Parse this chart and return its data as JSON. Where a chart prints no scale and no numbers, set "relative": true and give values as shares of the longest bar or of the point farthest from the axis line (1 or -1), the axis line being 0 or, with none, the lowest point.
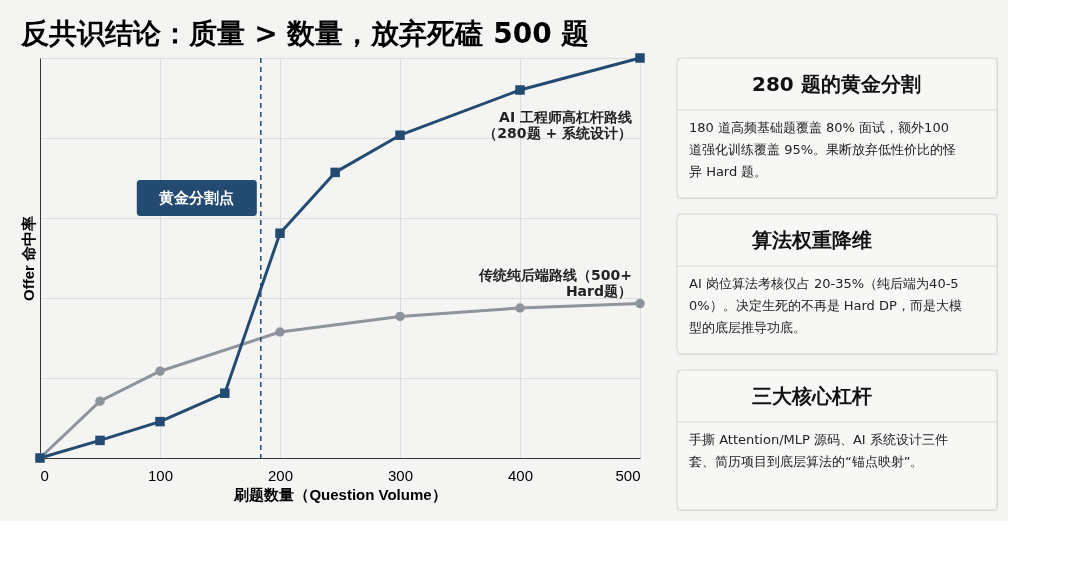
{
  "chart_data": [
    {
      "type": "line",
      "title": "反共识结论：质量 > 数量，放弃死磕 500 题",
      "xlabel": "刷题数量（Question Volume）",
      "ylabel": "Offer 命中率",
      "relative": true,
      "xlim": [
        0,
        500
      ],
      "xticks": [
        0,
        100,
        200,
        300,
        400,
        500
      ],
      "grid": true,
      "legend": false,
      "line_style": "solid",
      "series": [
        {
          "name": "传统纯后端路线（500+ Hard题）",
          "color": "#8e949c",
          "marker": "circle",
          "x": [
            0,
            50,
            100,
            200,
            300,
            400,
            500
          ],
          "values": [
            0,
            0.142,
            0.217,
            0.315,
            0.354,
            0.375,
            0.386
          ]
        },
        {
          "name": "AI 工程师高杠杆路线（280题 + 系统设计）",
          "color": "#234b72",
          "marker": "square",
          "x": [
            0,
            50,
            100,
            154,
            200,
            246,
            300,
            400,
            500
          ],
          "values": [
            0,
            0.044,
            0.091,
            0.162,
            0.562,
            0.714,
            0.807,
            0.92,
            1
          ]
        }
      ],
      "ref_lines": [
        {
          "axis": "x",
          "value": 184,
          "label": "黄金分割点",
          "color": "#234b72",
          "line_style": "dashed"
        }
      ]
    },
    {
      "type": "other",
      "title": "280 题的黄金分割",
      "annotations": [
        "180 道高频基础题覆盖 80% 面试，额外100 道强化训练覆盖 95%。果断放弃低性价比的怪异 Hard 题。"
      ]
    },
    {
      "type": "other",
      "title": "算法权重降维",
      "annotations": [
        "AI 岗位算法考核仅占 20-35%（纯后端为40-50%）。决定生死的不再是 Hard DP，而是大模型的底层推导功底。"
      ]
    },
    {
      "type": "other",
      "title": "三大核心杠杆",
      "annotations": [
        "手撕 Attention/MLP 源码、AI 系统设计三件套、简历项目到底层算法的“锚点映射”。"
      ]
    }
  ]
}
